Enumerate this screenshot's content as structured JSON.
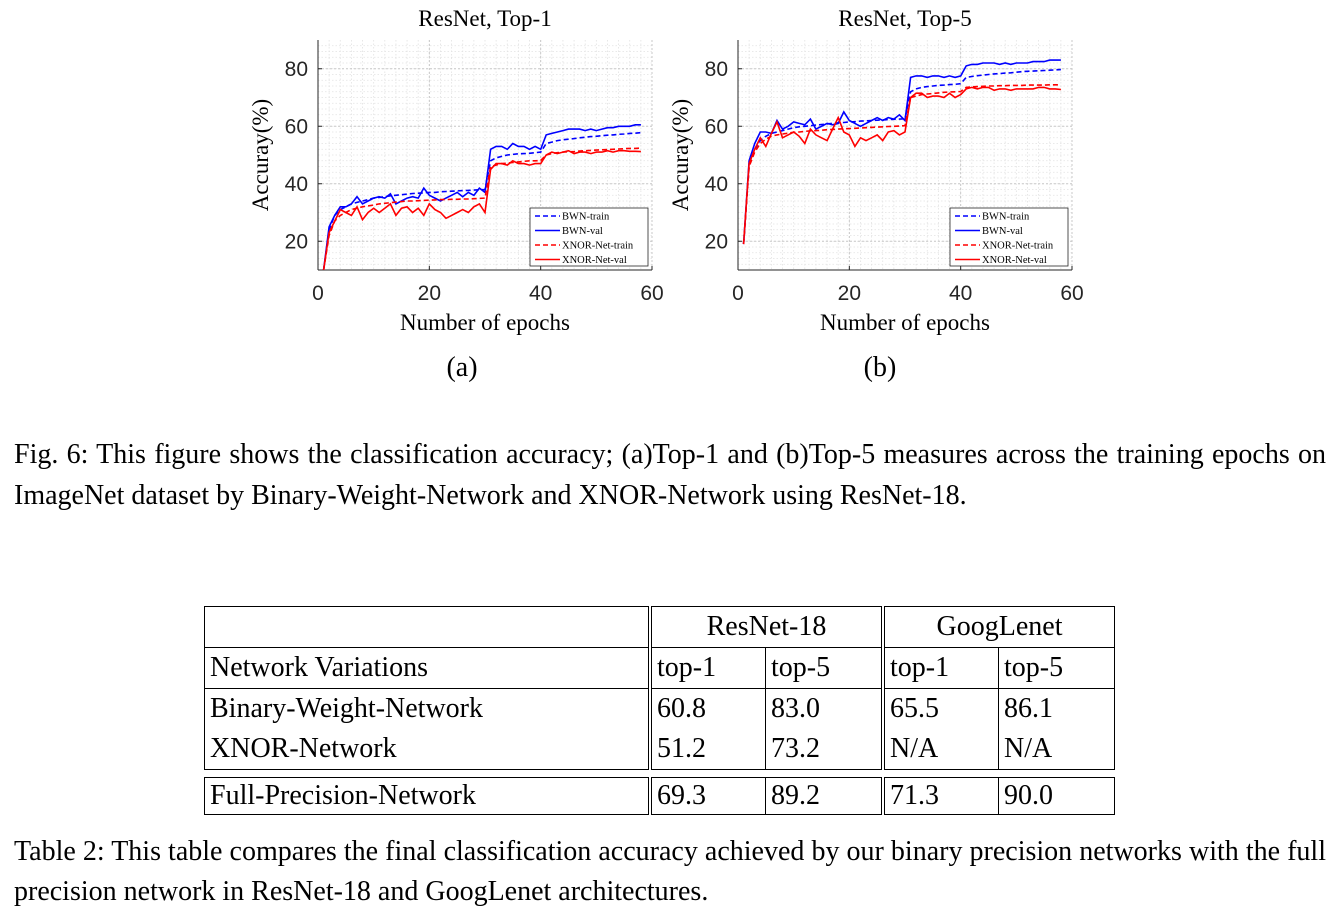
{
  "chart_data": [
    {
      "type": "line",
      "title": "ResNet, Top-1",
      "xlabel": "Number of epochs",
      "ylabel": "Accuray(%)",
      "xlim": [
        0,
        60
      ],
      "ylim": [
        10,
        90
      ],
      "xticks": [
        0,
        20,
        40,
        60
      ],
      "yticks": [
        20,
        40,
        60,
        80
      ],
      "grid": true,
      "legend_position": "bottom-right",
      "x": [
        1,
        2,
        3,
        4,
        5,
        6,
        7,
        8,
        9,
        10,
        11,
        12,
        13,
        14,
        15,
        16,
        17,
        18,
        19,
        20,
        21,
        22,
        23,
        24,
        25,
        26,
        27,
        28,
        29,
        30,
        31,
        32,
        33,
        34,
        35,
        36,
        37,
        38,
        39,
        40,
        41,
        42,
        43,
        44,
        45,
        46,
        47,
        48,
        49,
        50,
        51,
        52,
        53,
        54,
        55,
        56,
        57,
        58
      ],
      "series": [
        {
          "name": "BWN-train",
          "color": "#0000ff",
          "dash": true,
          "values": [
            10,
            24,
            29,
            31,
            32,
            33,
            33.5,
            34,
            34.5,
            35,
            35.2,
            35.5,
            35.8,
            36,
            36.2,
            36.4,
            36.6,
            36.7,
            36.8,
            37,
            37,
            37.2,
            37.3,
            37.4,
            37.5,
            37.6,
            37.7,
            37.8,
            37.9,
            38,
            48,
            49,
            49.5,
            50,
            50.2,
            50.4,
            50.5,
            50.6,
            50.8,
            51,
            54,
            54.5,
            55,
            55.3,
            55.5,
            55.7,
            56,
            56.2,
            56.4,
            56.5,
            56.7,
            56.9,
            57,
            57.2,
            57.3,
            57.5,
            57.6,
            57.8
          ]
        },
        {
          "name": "BWN-val",
          "color": "#0000ff",
          "dash": false,
          "values": [
            10,
            25,
            29,
            32,
            32,
            33,
            35.5,
            33,
            34,
            35,
            35.5,
            35,
            36.5,
            33,
            34,
            35,
            35.5,
            35,
            38.5,
            36,
            35,
            34,
            35,
            36,
            37,
            35.5,
            37,
            36,
            38.5,
            37,
            52,
            53,
            53,
            52,
            54,
            53,
            53,
            52,
            53,
            52,
            57,
            57.5,
            58,
            58.5,
            59,
            59,
            59,
            58.5,
            59,
            58.5,
            59,
            59.5,
            59.5,
            60,
            60,
            60,
            60.5,
            60.5
          ]
        },
        {
          "name": "XNOR-Net-train",
          "color": "#ff0000",
          "dash": true,
          "values": [
            10,
            22,
            27,
            29,
            30,
            31,
            31.5,
            32,
            32.3,
            32.6,
            33,
            33.2,
            33.4,
            33.6,
            33.8,
            34,
            34,
            34.1,
            34.2,
            34.3,
            34.4,
            34.5,
            34.5,
            34.6,
            34.6,
            34.7,
            34.7,
            34.8,
            34.9,
            35,
            46,
            46.5,
            47,
            47.2,
            47.4,
            47.6,
            47.8,
            48,
            48,
            48.1,
            50,
            50.5,
            50.8,
            51,
            51.1,
            51.2,
            51.4,
            51.5,
            51.6,
            51.7,
            51.8,
            51.9,
            52,
            52.1,
            52.2,
            52.3,
            52.3,
            52.4
          ]
        },
        {
          "name": "XNOR-Net-val",
          "color": "#ff0000",
          "dash": false,
          "values": [
            10,
            23,
            27,
            31,
            30,
            29,
            32,
            27.5,
            30,
            31.5,
            30,
            31.5,
            33,
            29,
            31.5,
            32,
            30,
            31.5,
            29,
            33,
            31,
            30,
            28,
            29,
            30,
            31,
            30,
            32,
            33,
            30,
            45,
            47,
            47,
            46.5,
            48,
            47,
            47,
            46.5,
            47,
            47,
            50,
            51,
            50.5,
            51,
            51.5,
            50.5,
            51,
            51,
            50.5,
            51,
            51,
            51.5,
            51,
            51.5,
            51.5,
            51.3,
            51.3,
            51.2
          ]
        }
      ]
    },
    {
      "type": "line",
      "title": "ResNet, Top-5",
      "xlabel": "Number of epochs",
      "ylabel": "Accuray(%)",
      "xlim": [
        0,
        60
      ],
      "ylim": [
        10,
        90
      ],
      "xticks": [
        0,
        20,
        40,
        60
      ],
      "yticks": [
        20,
        40,
        60,
        80
      ],
      "grid": true,
      "legend_position": "bottom-right",
      "x": [
        1,
        2,
        3,
        4,
        5,
        6,
        7,
        8,
        9,
        10,
        11,
        12,
        13,
        14,
        15,
        16,
        17,
        18,
        19,
        20,
        21,
        22,
        23,
        24,
        25,
        26,
        27,
        28,
        29,
        30,
        31,
        32,
        33,
        34,
        35,
        36,
        37,
        38,
        39,
        40,
        41,
        42,
        43,
        44,
        45,
        46,
        47,
        48,
        49,
        50,
        51,
        52,
        53,
        54,
        55,
        56,
        57,
        58
      ],
      "series": [
        {
          "name": "BWN-train",
          "color": "#0000ff",
          "dash": true,
          "values": [
            19,
            46,
            52,
            55,
            56.5,
            57.5,
            58,
            58.5,
            59,
            59.5,
            59.8,
            60,
            60.2,
            60.4,
            60.6,
            60.8,
            61,
            61.2,
            61.3,
            61.5,
            61.6,
            61.8,
            61.9,
            62,
            62.1,
            62.2,
            62.3,
            62.4,
            62.5,
            62.6,
            72,
            73,
            73.5,
            73.8,
            74,
            74.2,
            74.3,
            74.5,
            74.6,
            74.8,
            77,
            77.3,
            77.6,
            77.8,
            78,
            78.2,
            78.3,
            78.5,
            78.6,
            78.8,
            79,
            79.1,
            79.2,
            79.3,
            79.4,
            79.5,
            79.6,
            79.7
          ]
        },
        {
          "name": "BWN-val",
          "color": "#0000ff",
          "dash": false,
          "values": [
            19,
            48,
            54,
            58,
            58,
            57.5,
            62,
            59,
            60,
            61.5,
            61,
            60.5,
            62.5,
            59,
            60,
            61,
            60.5,
            61,
            65,
            62,
            61,
            60,
            61,
            62,
            63,
            62,
            63,
            62.5,
            64,
            62,
            77,
            77.5,
            77.5,
            77,
            77.5,
            77.5,
            77,
            77.5,
            77,
            77.5,
            81,
            81.5,
            81.5,
            82,
            82,
            82,
            81.5,
            82,
            81.5,
            82,
            82,
            82,
            82.5,
            82.5,
            82.5,
            83,
            83,
            83
          ]
        },
        {
          "name": "XNOR-Net-train",
          "color": "#ff0000",
          "dash": true,
          "values": [
            19,
            46,
            51,
            54,
            55.5,
            56.5,
            57,
            57.3,
            57.6,
            57.9,
            58,
            58.2,
            58.4,
            58.5,
            58.6,
            58.8,
            58.9,
            59,
            59.1,
            59.2,
            59.3,
            59.4,
            59.5,
            59.6,
            59.7,
            59.8,
            59.9,
            60,
            60.1,
            60.2,
            70,
            70.5,
            71,
            71.2,
            71.4,
            71.6,
            71.8,
            71.9,
            72,
            72.1,
            73.5,
            73.7,
            73.8,
            73.9,
            74,
            74,
            74.1,
            74.1,
            74.2,
            74.2,
            74.2,
            74.3,
            74.3,
            74.3,
            74.3,
            74.4,
            74.4,
            74.4
          ]
        },
        {
          "name": "XNOR-Net-val",
          "color": "#ff0000",
          "dash": false,
          "values": [
            19,
            47,
            52,
            56,
            53,
            57.5,
            61.5,
            56,
            57,
            58,
            56.5,
            54,
            59,
            57,
            56,
            55,
            59,
            63,
            58,
            57,
            53,
            56,
            55,
            56,
            57,
            55,
            58,
            58.5,
            57,
            58,
            70,
            71.5,
            71.5,
            70,
            70.5,
            70.5,
            70,
            71.5,
            70,
            71,
            73,
            73.5,
            73,
            73.5,
            73.5,
            72.5,
            73,
            73,
            72.5,
            73,
            73,
            73,
            73,
            73.5,
            73.5,
            73,
            73,
            72.8
          ]
        }
      ]
    }
  ],
  "figure": {
    "sub_a": "(a)",
    "sub_b": "(b)",
    "caption": "Fig. 6: This figure shows the classification accuracy; (a)Top-1 and (b)Top-5 measures across the training epochs on ImageNet dataset by Binary-Weight-Network and XNOR-Network using ResNet-18."
  },
  "table": {
    "groups": [
      "ResNet-18",
      "GoogLenet"
    ],
    "header": [
      "Network Variations",
      "top-1",
      "top-5",
      "top-1",
      "top-5"
    ],
    "rows": [
      [
        "Binary-Weight-Network",
        "60.8",
        "83.0",
        "65.5",
        "86.1"
      ],
      [
        "XNOR-Network",
        "51.2",
        "73.2",
        "N/A",
        "N/A"
      ]
    ],
    "full": [
      "Full-Precision-Network",
      "69.3",
      "89.2",
      "71.3",
      "90.0"
    ],
    "caption": "Table 2: This table compares the final classification accuracy achieved by our binary precision networks with the full precision network in ResNet-18 and GoogLenet architectures."
  }
}
